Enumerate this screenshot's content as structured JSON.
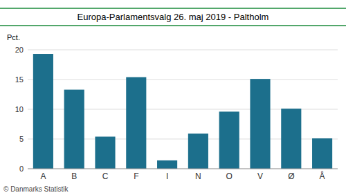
{
  "chart_data": {
    "type": "bar",
    "title": "Europa-Parlamentsvalg 26. maj 2019 - Paltholm",
    "ylabel": "Pct.",
    "categories": [
      "A",
      "B",
      "C",
      "F",
      "I",
      "N",
      "O",
      "V",
      "Ø",
      "Å"
    ],
    "values": [
      19.3,
      13.3,
      5.4,
      15.4,
      1.4,
      5.9,
      9.6,
      15.1,
      10.1,
      5.1
    ],
    "color": "#1c6f8c",
    "ylim": [
      0,
      20
    ],
    "yticks": [
      0,
      5,
      10,
      15,
      20
    ],
    "grid": true,
    "annotations": [
      "© Danmarks Statistik"
    ]
  }
}
